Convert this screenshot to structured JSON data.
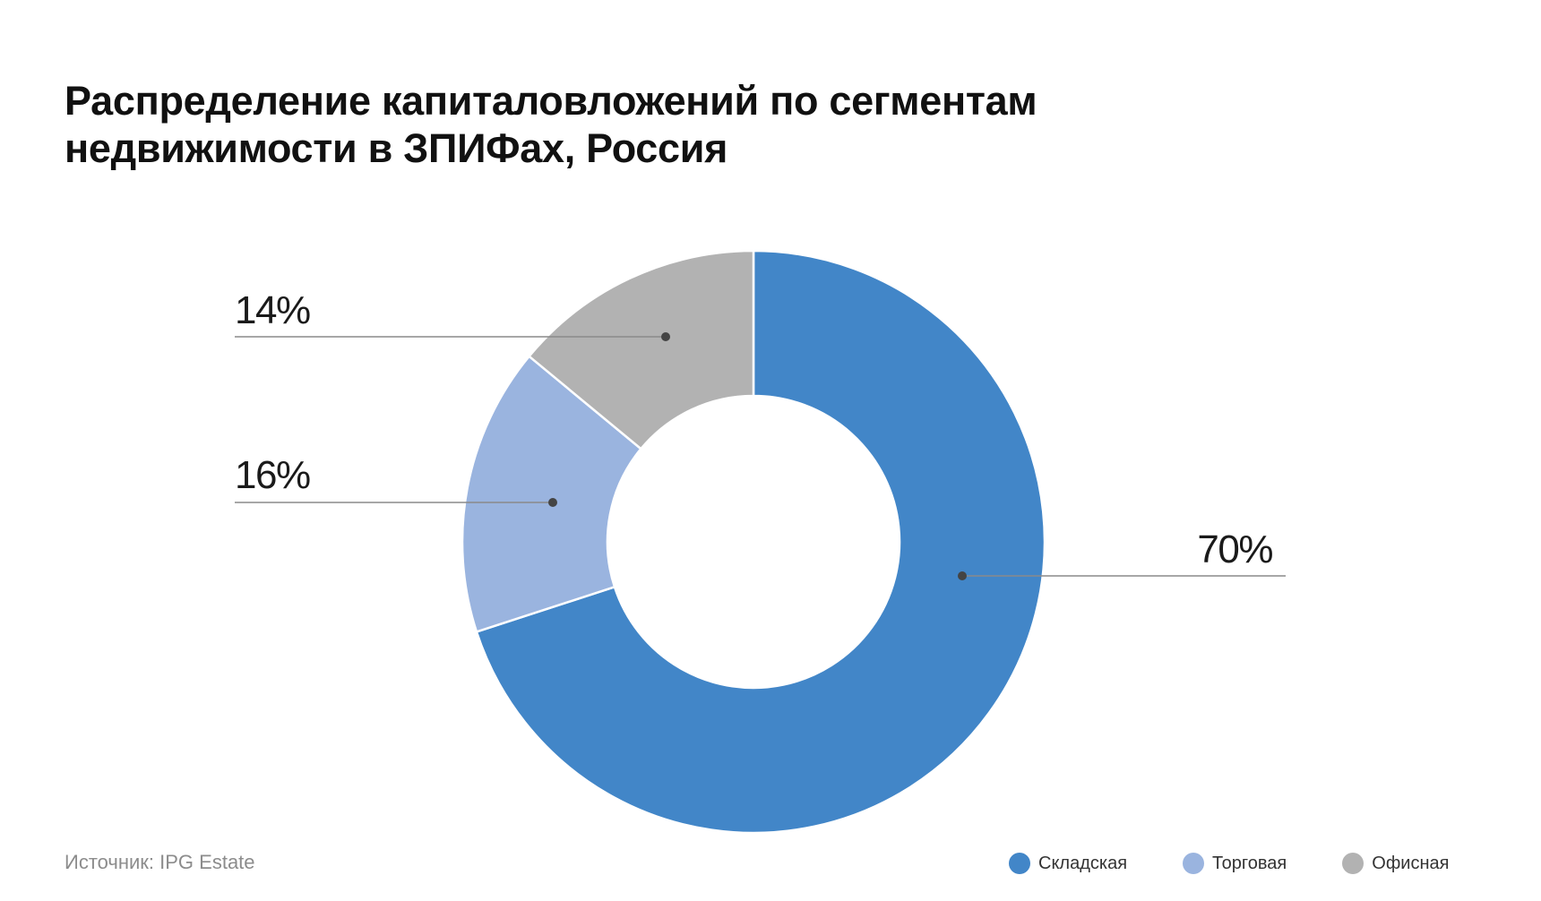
{
  "source": "Источник: IPG Estate",
  "chart_data": {
    "type": "pie",
    "variant": "donut",
    "title": "Распределение капиталовложений по сегментам недвижимости в ЗПИФах, Россия",
    "title_lines": [
      "Распределение капиталовложений по сегментам",
      "недвижимости в ЗПИФах, Россия"
    ],
    "unit": "%",
    "slices": [
      {
        "name": "Складская",
        "value": 70,
        "label": "70%",
        "color": "#4286c8"
      },
      {
        "name": "Торговая",
        "value": 16,
        "label": "16%",
        "color": "#9ab4df"
      },
      {
        "name": "Офисная",
        "value": 14,
        "label": "14%",
        "color": "#b2b2b2"
      }
    ],
    "legend_position": "bottom-right"
  }
}
